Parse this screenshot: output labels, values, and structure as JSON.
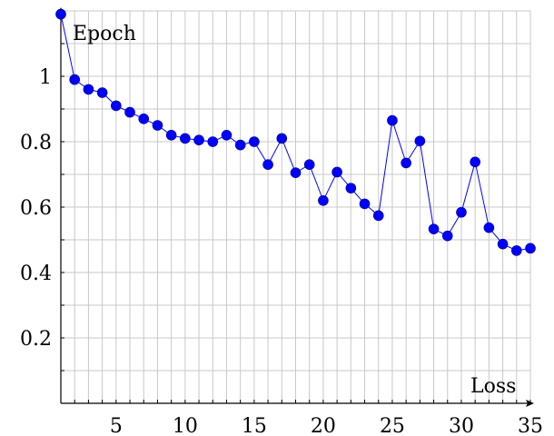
{
  "chart_data": {
    "type": "line",
    "title": "",
    "xlabel": "Loss",
    "ylabel": "Epoch",
    "xlim": [
      1,
      35
    ],
    "ylim": [
      0,
      1.2
    ],
    "xticks": [
      5,
      10,
      15,
      20,
      25,
      30,
      35
    ],
    "yticks": [
      0.2,
      0.4,
      0.6,
      0.8,
      1
    ],
    "grid": true,
    "series": [
      {
        "color": "#0000ff",
        "marker": "circle",
        "x": [
          1,
          2,
          3,
          4,
          5,
          6,
          7,
          8,
          9,
          10,
          11,
          12,
          13,
          14,
          15,
          16,
          17,
          18,
          19,
          20,
          21,
          22,
          23,
          24,
          25,
          26,
          27,
          28,
          29,
          30,
          31,
          32,
          33,
          34,
          35
        ],
        "y": [
          1.19,
          0.99,
          0.96,
          0.95,
          0.91,
          0.89,
          0.87,
          0.85,
          0.82,
          0.81,
          0.805,
          0.8,
          0.82,
          0.79,
          0.8,
          0.73,
          0.81,
          0.705,
          0.73,
          0.62,
          0.707,
          0.658,
          0.61,
          0.574,
          0.865,
          0.735,
          0.802,
          0.533,
          0.512,
          0.584,
          0.738,
          0.537,
          0.487,
          0.467,
          0.474
        ]
      }
    ]
  }
}
